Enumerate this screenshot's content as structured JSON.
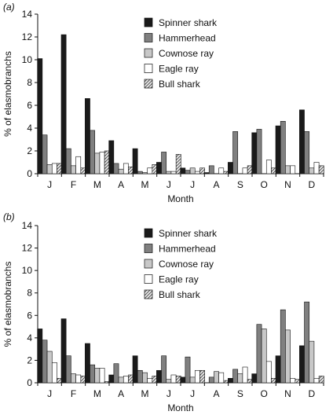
{
  "chart_data": [
    {
      "type": "bar",
      "panel_label": "(a)",
      "categories": [
        "J",
        "F",
        "M",
        "A",
        "M",
        "J",
        "J",
        "A",
        "S",
        "O",
        "N",
        "D"
      ],
      "xlabel": "Month",
      "ylabel": "% of elasmobranchs",
      "ylim": [
        0,
        14
      ],
      "yticks": [
        0,
        2,
        4,
        6,
        8,
        10,
        12,
        14
      ],
      "grid": false,
      "legend_position": "top-right",
      "series": [
        {
          "name": "Spinner shark",
          "color": "#1a1a1a",
          "pattern": "solid",
          "values": [
            10.1,
            12.2,
            6.6,
            2.9,
            2.2,
            1.0,
            0.5,
            0.1,
            1.0,
            3.6,
            4.2,
            5.6
          ]
        },
        {
          "name": "Hammerhead",
          "color": "#808080",
          "pattern": "solid",
          "values": [
            3.4,
            2.2,
            3.8,
            0.9,
            0.2,
            1.9,
            0.3,
            0.7,
            3.7,
            3.9,
            4.6,
            3.7
          ]
        },
        {
          "name": "Cownose ray",
          "color": "#c8c8c8",
          "pattern": "solid",
          "values": [
            0.8,
            0.7,
            1.8,
            0.4,
            0.1,
            0.2,
            0.5,
            0.0,
            0.0,
            0.0,
            0.7,
            0.5
          ]
        },
        {
          "name": "Eagle ray",
          "color": "#ffffff",
          "pattern": "solid",
          "values": [
            0.9,
            1.5,
            1.9,
            0.9,
            0.5,
            0.2,
            0.2,
            0.5,
            0.5,
            1.2,
            0.7,
            1.0
          ]
        },
        {
          "name": "Bull shark",
          "color": "#d9d9d9",
          "pattern": "hatch",
          "values": [
            0.9,
            0.5,
            2.0,
            0.6,
            0.8,
            1.7,
            0.5,
            0.2,
            0.7,
            0.5,
            0.0,
            0.7
          ]
        }
      ]
    },
    {
      "type": "bar",
      "panel_label": "(b)",
      "categories": [
        "J",
        "F",
        "M",
        "A",
        "M",
        "J",
        "J",
        "A",
        "S",
        "O",
        "N",
        "D"
      ],
      "xlabel": "Month",
      "ylabel": "% of elasmobranchs",
      "ylim": [
        0,
        14
      ],
      "yticks": [
        0,
        2,
        4,
        6,
        8,
        10,
        12,
        14
      ],
      "grid": false,
      "legend_position": "top-right",
      "series": [
        {
          "name": "Spinner shark",
          "color": "#1a1a1a",
          "pattern": "solid",
          "values": [
            4.8,
            5.7,
            3.5,
            0.7,
            2.4,
            1.1,
            0.5,
            0.0,
            0.4,
            0.8,
            2.4,
            3.3
          ]
        },
        {
          "name": "Hammerhead",
          "color": "#808080",
          "pattern": "solid",
          "values": [
            3.8,
            2.4,
            1.6,
            1.7,
            1.1,
            2.4,
            2.3,
            0.5,
            1.2,
            5.2,
            6.5,
            7.2
          ]
        },
        {
          "name": "Cownose ray",
          "color": "#c8c8c8",
          "pattern": "solid",
          "values": [
            2.8,
            0.8,
            1.3,
            0.5,
            0.9,
            0.3,
            0.5,
            1.0,
            0.8,
            4.8,
            4.7,
            3.7
          ]
        },
        {
          "name": "Eagle ray",
          "color": "#ffffff",
          "pattern": "solid",
          "values": [
            1.8,
            0.7,
            1.3,
            0.6,
            0.4,
            0.7,
            1.1,
            0.9,
            1.4,
            1.9,
            0.4,
            0.4
          ]
        },
        {
          "name": "Bull shark",
          "color": "#d9d9d9",
          "pattern": "hatch",
          "values": [
            0.4,
            0.6,
            0.1,
            0.7,
            0.6,
            0.6,
            1.1,
            0.2,
            0.3,
            0.4,
            0.3,
            0.6
          ]
        }
      ]
    }
  ]
}
